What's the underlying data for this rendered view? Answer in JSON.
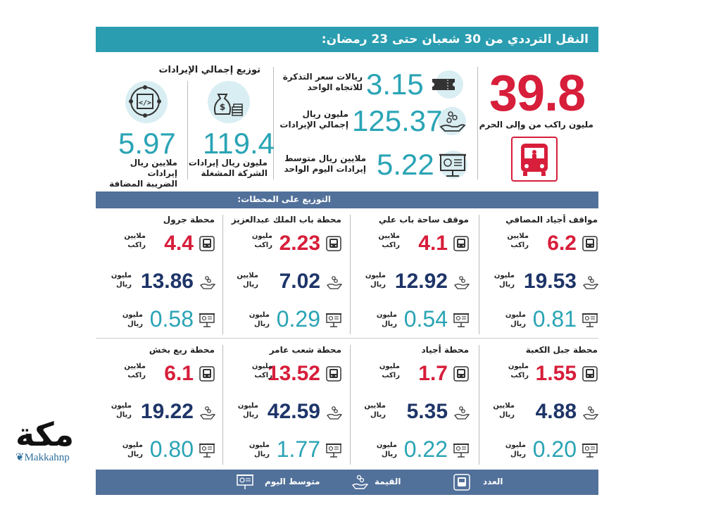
{
  "title": "النقل الترددي من 30 شعبان حتى 23 رمضان:",
  "total": {
    "value": "39.8",
    "label": "مليون راكب من وإلى الحرم"
  },
  "stats": [
    {
      "value": "3.15",
      "label_1": "ريالات سعر التذكرة",
      "label_2": "للاتجاه الواحد",
      "icon": "ticket-icon"
    },
    {
      "value": "125.37",
      "label_1": "مليون ريال",
      "label_2": "إجمالي الإيرادات",
      "icon": "money-hand-icon"
    },
    {
      "value": "5.22",
      "label_1": "ملايين ريال متوسط",
      "label_2": "إيرادات اليوم الواحد",
      "icon": "presentation-board-icon"
    }
  ],
  "revenue": {
    "heading": "توزيع إجمالي الإيرادات",
    "company": {
      "value": "119.4",
      "label_1": "مليون ريال إيرادات",
      "label_2": "الشركة المشغلة"
    },
    "vat": {
      "value": "5.97",
      "label_1": "ملايين ريال إيرادات",
      "label_2": "الضريبة المضافة"
    }
  },
  "stations_heading": "التوزيع على المحطات:",
  "stations": [
    {
      "name": "مواقف أجياد المصافي",
      "count": "6.2",
      "count_u1": "ملايين",
      "count_u2": "راكب",
      "value": "19.53",
      "value_u1": "مليون",
      "value_u2": "ريال",
      "avg": "0.81",
      "avg_u1": "مليون",
      "avg_u2": "ريال"
    },
    {
      "name": "موقف ساحة باب علي",
      "count": "4.1",
      "count_u1": "ملايين",
      "count_u2": "راكب",
      "value": "12.92",
      "value_u1": "مليون",
      "value_u2": "ريال",
      "avg": "0.54",
      "avg_u1": "مليون",
      "avg_u2": "ريال"
    },
    {
      "name": "محطة باب الملك عبدالعزيز",
      "count": "2.23",
      "count_u1": "مليون",
      "count_u2": "راكب",
      "value": "7.02",
      "value_u1": "ملايين",
      "value_u2": "ريال",
      "avg": "0.29",
      "avg_u1": "مليون",
      "avg_u2": "ريال"
    },
    {
      "name": "محطة جرول",
      "count": "4.4",
      "count_u1": "ملايين",
      "count_u2": "راكب",
      "value": "13.86",
      "value_u1": "مليون",
      "value_u2": "ريال",
      "avg": "0.58",
      "avg_u1": "مليون",
      "avg_u2": "ريال"
    },
    {
      "name": "محطة جبل الكعبة",
      "count": "1.55",
      "count_u1": "مليون",
      "count_u2": "راكب",
      "value": "4.88",
      "value_u1": "ملايين",
      "value_u2": "ريال",
      "avg": "0.20",
      "avg_u1": "مليون",
      "avg_u2": "ريال"
    },
    {
      "name": "محطة أجياد",
      "count": "1.7",
      "count_u1": "مليون",
      "count_u2": "راكب",
      "value": "5.35",
      "value_u1": "ملايين",
      "value_u2": "ريال",
      "avg": "0.22",
      "avg_u1": "مليون",
      "avg_u2": "ريال"
    },
    {
      "name": "محطة شعب عامر",
      "count": "13.52",
      "count_u1": "مليون",
      "count_u2": "راكب",
      "value": "42.59",
      "value_u1": "مليون",
      "value_u2": "ريال",
      "avg": "1.77",
      "avg_u1": "مليون",
      "avg_u2": "ريال"
    },
    {
      "name": "محطة ريع بخش",
      "count": "6.1",
      "count_u1": "ملايين",
      "count_u2": "راكب",
      "value": "19.22",
      "value_u1": "مليون",
      "value_u2": "ريال",
      "avg": "0.80",
      "avg_u1": "مليون",
      "avg_u2": "ريال"
    }
  ],
  "legend": {
    "count": "العدد",
    "value": "القيمة",
    "avg": "متوسط اليوم"
  },
  "logo": {
    "arabic": "مكة",
    "english": "Makkahnp"
  },
  "colors": {
    "teal": "#2a9db0",
    "red": "#d71e3a",
    "navy": "#1e3568",
    "slate": "#51709a"
  }
}
